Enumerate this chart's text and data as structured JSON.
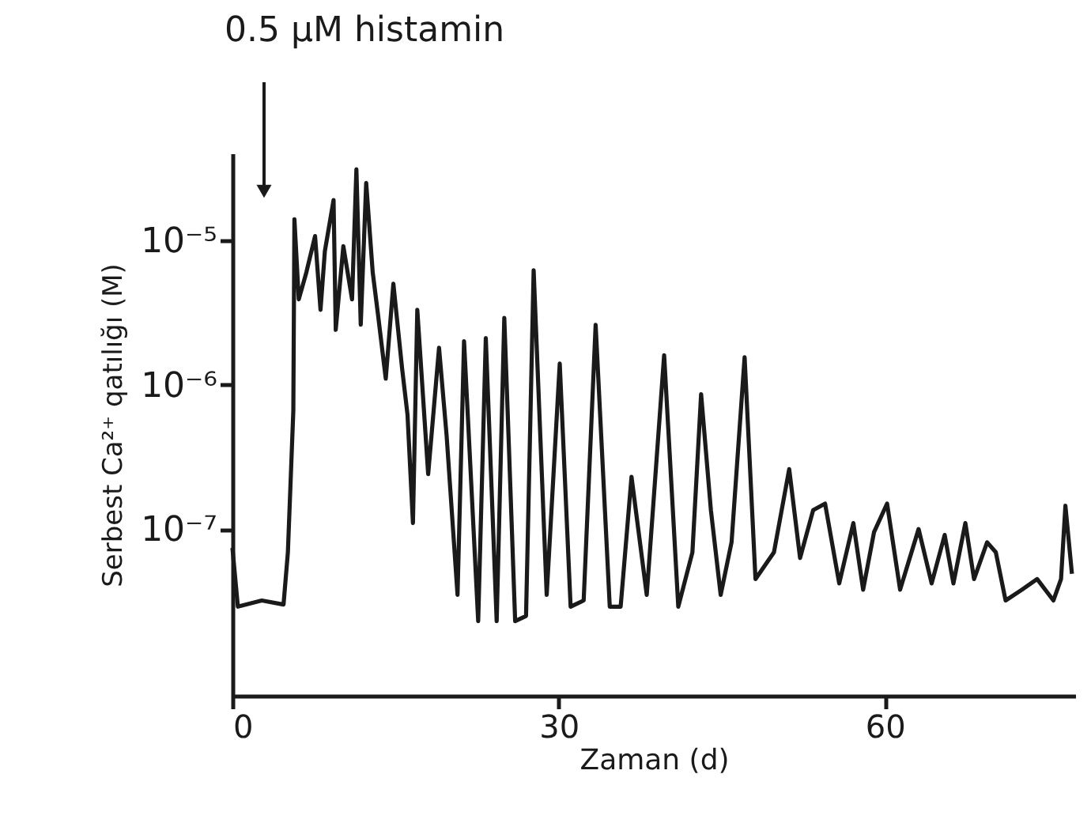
{
  "chart_data": {
    "type": "line",
    "xlabel": "Zaman (d)",
    "ylabel": "Serbest Ca²⁺ qatılığı (M)",
    "log": "y",
    "xlim": [
      0,
      77.5
    ],
    "ylim": [
      7e-09,
      4e-05
    ],
    "xticks": [
      0,
      30,
      60
    ],
    "yticks": [
      {
        "value": 1e-05,
        "label": "10⁻⁵"
      },
      {
        "value": 1e-06,
        "label": "10⁻⁶"
      },
      {
        "value": 1e-07,
        "label": "10⁻⁷"
      }
    ],
    "annotations": [
      "0.5 μM histamin"
    ],
    "series": [
      {
        "color": "#1a1a1a",
        "x": [
          0.0,
          0.5,
          2.7,
          4.7,
          5.1,
          5.6,
          5.7,
          6.1,
          6.8,
          7.6,
          8.1,
          8.5,
          9.3,
          9.5,
          10.2,
          11.0,
          11.4,
          11.8,
          12.3,
          12.9,
          13.4,
          14.1,
          14.8,
          15.6,
          16.1,
          16.6,
          17.0,
          18.0,
          19.0,
          19.7,
          20.7,
          21.3,
          22.6,
          23.3,
          24.3,
          25.0,
          26.0,
          27.0,
          27.7,
          28.9,
          30.1,
          31.1,
          32.3,
          33.4,
          34.7,
          35.7,
          36.7,
          38.1,
          39.7,
          41.0,
          42.3,
          43.1,
          44.0,
          44.9,
          45.9,
          47.1,
          48.1,
          49.8,
          51.2,
          52.2,
          53.4,
          54.5,
          55.8,
          57.1,
          58.0,
          59.0,
          60.2,
          61.4,
          63.1,
          64.3,
          65.5,
          66.3,
          67.4,
          68.2,
          69.4,
          70.2,
          71.1,
          72.6,
          74.0,
          75.5,
          76.2,
          76.6,
          77.2
        ],
        "values": [
          7.4e-08,
          2.9e-08,
          3.2e-08,
          3e-08,
          6.9e-08,
          6.6e-07,
          1.4e-05,
          3.9e-06,
          6e-06,
          1.07e-05,
          3.3e-06,
          8.4e-06,
          1.9e-05,
          2.4e-06,
          9.1e-06,
          3.9e-06,
          3.1e-05,
          2.6e-06,
          2.5e-05,
          6e-06,
          3e-06,
          1.1e-06,
          5e-06,
          1.3e-06,
          6.2e-07,
          1.1e-07,
          3.3e-06,
          2.4e-07,
          1.8e-06,
          4.4e-07,
          3.5e-08,
          2e-06,
          2.3e-08,
          2.1e-06,
          2.3e-08,
          2.9e-06,
          2.3e-08,
          2.5e-08,
          6.2e-06,
          3.5e-08,
          1.4e-06,
          2.9e-08,
          3.2e-08,
          2.6e-06,
          2.9e-08,
          2.9e-08,
          2.3e-07,
          3.5e-08,
          1.6e-06,
          2.9e-08,
          6.9e-08,
          8.6e-07,
          1.35e-07,
          3.5e-08,
          8.1e-08,
          1.55e-06,
          4.5e-08,
          6.9e-08,
          2.6e-07,
          6.3e-08,
          1.35e-07,
          1.5e-07,
          4.2e-08,
          1.1e-07,
          3.8e-08,
          9.5e-08,
          1.5e-07,
          3.8e-08,
          1e-07,
          4.2e-08,
          9.1e-08,
          4.2e-08,
          1.1e-07,
          4.5e-08,
          8.1e-08,
          6.9e-08,
          3.2e-08,
          3.8e-08,
          4.5e-08,
          3.2e-08,
          4.5e-08,
          1.45e-07,
          4.9e-08
        ]
      }
    ]
  }
}
